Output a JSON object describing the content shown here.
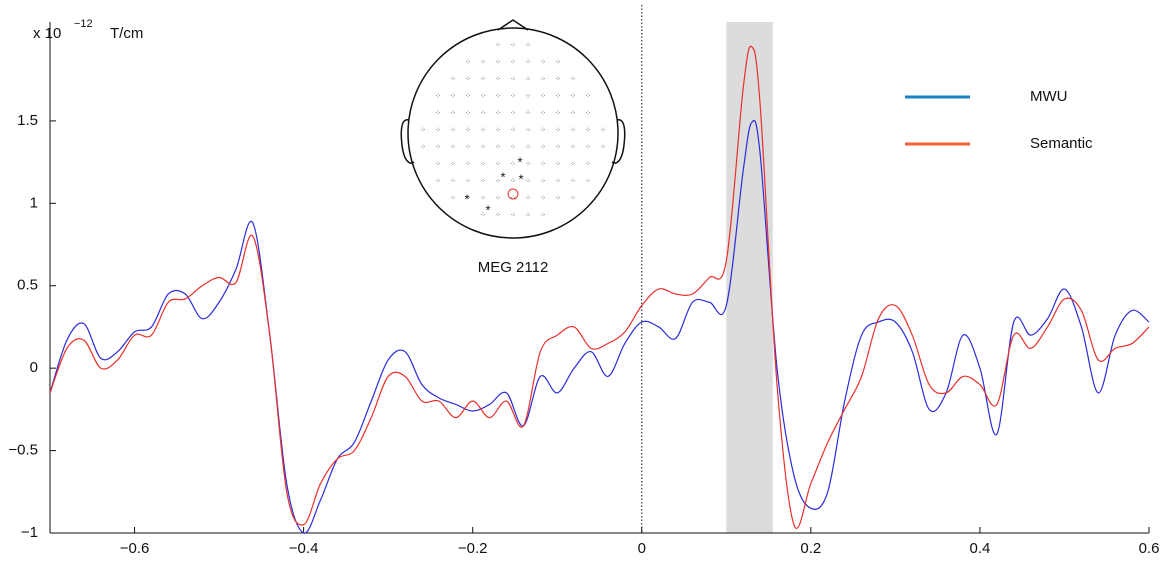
{
  "chart_data": {
    "type": "line",
    "y_label": "x 10",
    "y_label_exponent": "−12",
    "y_label_unit": "T/cm",
    "annotation": "MEG 2112",
    "x": [
      -0.7,
      -0.68,
      -0.66,
      -0.64,
      -0.62,
      -0.6,
      -0.58,
      -0.56,
      -0.54,
      -0.52,
      -0.5,
      -0.48,
      -0.46,
      -0.44,
      -0.42,
      -0.4,
      -0.38,
      -0.36,
      -0.34,
      -0.32,
      -0.3,
      -0.28,
      -0.26,
      -0.24,
      -0.22,
      -0.2,
      -0.18,
      -0.16,
      -0.14,
      -0.12,
      -0.1,
      -0.08,
      -0.06,
      -0.04,
      -0.02,
      0.0,
      0.02,
      0.04,
      0.06,
      0.08,
      0.1,
      0.12,
      0.13,
      0.14,
      0.16,
      0.18,
      0.2,
      0.22,
      0.24,
      0.26,
      0.28,
      0.3,
      0.32,
      0.34,
      0.36,
      0.38,
      0.4,
      0.42,
      0.44,
      0.46,
      0.48,
      0.5,
      0.52,
      0.54,
      0.56,
      0.58,
      0.6
    ],
    "series": [
      {
        "name": "MWU",
        "color": "#2b2bdc",
        "legend_color": "#1a80c8",
        "values": [
          -0.15,
          0.17,
          0.27,
          0.06,
          0.1,
          0.22,
          0.25,
          0.45,
          0.45,
          0.3,
          0.4,
          0.6,
          0.88,
          0.2,
          -0.7,
          -1.0,
          -0.8,
          -0.55,
          -0.45,
          -0.2,
          0.05,
          0.1,
          -0.1,
          -0.18,
          -0.22,
          -0.26,
          -0.22,
          -0.15,
          -0.35,
          -0.05,
          -0.15,
          0.0,
          0.1,
          -0.05,
          0.15,
          0.28,
          0.25,
          0.18,
          0.4,
          0.4,
          0.38,
          1.2,
          1.49,
          1.3,
          0.0,
          -0.65,
          -0.85,
          -0.75,
          -0.2,
          0.2,
          0.28,
          0.28,
          0.1,
          -0.25,
          -0.15,
          0.2,
          0.0,
          -0.4,
          0.28,
          0.2,
          0.3,
          0.48,
          0.25,
          -0.15,
          0.2,
          0.35,
          0.28
        ]
      },
      {
        "name": "Semantic",
        "color": "#e8302a",
        "legend_color": "#f0603a",
        "values": [
          -0.15,
          0.12,
          0.17,
          0.0,
          0.05,
          0.2,
          0.2,
          0.4,
          0.42,
          0.5,
          0.55,
          0.52,
          0.8,
          0.2,
          -0.75,
          -0.95,
          -0.7,
          -0.55,
          -0.5,
          -0.3,
          -0.05,
          -0.05,
          -0.2,
          -0.2,
          -0.3,
          -0.2,
          -0.3,
          -0.2,
          -0.35,
          0.1,
          0.2,
          0.25,
          0.12,
          0.15,
          0.22,
          0.38,
          0.48,
          0.45,
          0.45,
          0.55,
          0.65,
          1.7,
          1.95,
          1.6,
          -0.1,
          -0.95,
          -0.7,
          -0.45,
          -0.25,
          -0.05,
          0.3,
          0.38,
          0.2,
          -0.1,
          -0.15,
          -0.05,
          -0.1,
          -0.22,
          0.2,
          0.12,
          0.25,
          0.42,
          0.35,
          0.05,
          0.12,
          0.15,
          0.25
        ]
      }
    ],
    "xlim": [
      -0.7,
      0.6
    ],
    "xticks": [
      {
        "value": -0.6,
        "label": "−0.6"
      },
      {
        "value": -0.4,
        "label": "−0.4"
      },
      {
        "value": -0.2,
        "label": "−0.2"
      },
      0,
      0.2,
      0.4,
      0.6
    ],
    "ylim": [
      -1,
      2.1
    ],
    "yticks": [
      {
        "value": -1,
        "label": "−1"
      },
      {
        "value": -0.5,
        "label": "−0.5"
      },
      0,
      0.5,
      1,
      1.5
    ],
    "highlight": [
      0.1,
      0.155
    ],
    "highlight_color": "#dcdcdc",
    "vline": 0,
    "legend": "upper right",
    "grid": false
  }
}
